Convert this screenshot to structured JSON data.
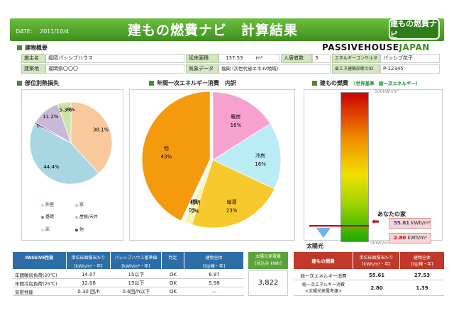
{
  "header": {
    "date_label": "DATE:",
    "date": "2011/10/4",
    "title": "建もの燃費ナビ　計算結果",
    "logo": "建もの燃費ナビ"
  },
  "brand": {
    "part1": "PASSIVEHOUSE",
    "part2": "JAPAN"
  },
  "overview": {
    "heading": "建物概要",
    "fields": {
      "owner_label": "施主名",
      "owner": "福岡パッシブハウス",
      "floor_area_label": "延床面積",
      "floor_area": "137.53",
      "floor_area_unit": "m²",
      "residents_label": "入居者数",
      "residents": "3",
      "consultant_label": "エネルギーコンサルタント",
      "consultant": "パッシブ花子",
      "site_label": "建築地",
      "site": "福岡県〇〇〇",
      "weather_label": "気象データ",
      "weather": "福岡 (次世代省エネ:Ⅳ地域)",
      "cert_label": "省エネ建築診断士ID",
      "cert": "P-12345"
    }
  },
  "sections": {
    "heat_loss": "部位別熱損失",
    "energy": "年間一次エネルギー消費　内訳",
    "fuel": "建もの燃費",
    "fuel_sub": "（世界基準　総一次エネルギー）"
  },
  "chart_data": [
    {
      "type": "pie",
      "title": "部位別熱損失",
      "labels": [
        "外壁",
        "窓",
        "基礎",
        "屋根/天井",
        "床",
        "他"
      ],
      "values": [
        38.1,
        44.4,
        0.8,
        11.2,
        5.3,
        0.0
      ],
      "value_labels": [
        "38.1%",
        "44.4%",
        "0.8%",
        "11.2%",
        "5.3%",
        "0%"
      ],
      "colors": [
        "#f9c99d",
        "#a9d6e3",
        "#8e7cb8",
        "#c9b8d8",
        "#cfe3a8",
        "#3a4f8a"
      ]
    },
    {
      "type": "pie",
      "title": "年間一次エネルギー消費　内訳",
      "labels": [
        "暖房",
        "冷房",
        "給湯",
        "照明",
        "調理",
        "他"
      ],
      "values": [
        16,
        16,
        23,
        2,
        0,
        43
      ],
      "value_labels": [
        "16%",
        "16%",
        "23%",
        "2%",
        "0%",
        "43%"
      ],
      "colors": [
        "#f7a1cf",
        "#b9ecf5",
        "#f7c92c",
        "#fbf2b0",
        "#f2f2f2",
        "#f59a0c"
      ]
    },
    {
      "type": "bar",
      "title": "建もの燃費",
      "scale_top": "500kWh/m²",
      "scale_bottom": "0kWh/m²",
      "ylim": [
        0,
        500
      ],
      "values": [
        55.61,
        2.8
      ],
      "value_labels": [
        "55.61",
        "2.80"
      ],
      "unit": "kWh/m²"
    }
  ],
  "gauge": {
    "your_home": "あなたの家",
    "solar": "太陽光",
    "val1": "55.61",
    "val2": "2.80",
    "unit": "kWh/m²"
  },
  "passive_table": {
    "headers": [
      "PASSIVE性能",
      "単位床面積当たり",
      "パッシブハウス基準値",
      "判定",
      "建物全体"
    ],
    "subheaders": [
      "",
      "[kWh/m²・年]",
      "[kWh/m²・年]",
      "",
      "[GJ/棟・年]"
    ],
    "rows": [
      [
        "年間暖房負荷(20℃)",
        "14.07",
        "15以下",
        "OK",
        "6.97"
      ],
      [
        "年間冷房負荷(25℃)",
        "12.08",
        "15以下",
        "OK",
        "5.98"
      ],
      [
        "気密性能",
        "0.30 回/h",
        "0.6回/h以下",
        "OK",
        "—"
      ]
    ]
  },
  "solar_box": {
    "title": "太陽光発電量",
    "sub": "[見込み kWh]",
    "value": "3,822"
  },
  "fuel_table": {
    "headers": [
      "建もの燃費",
      "単位床面積当たり",
      "建物全体"
    ],
    "subheaders": [
      "",
      "[kWh/m²・年]",
      "[GJ/棟・年]"
    ],
    "rows": [
      [
        "総一次エネルギー消費",
        "55.61",
        "27.53"
      ],
      [
        "総一次エネルギー消費\n<太陽光発電考慮>",
        "2.80",
        "1.39"
      ]
    ]
  }
}
